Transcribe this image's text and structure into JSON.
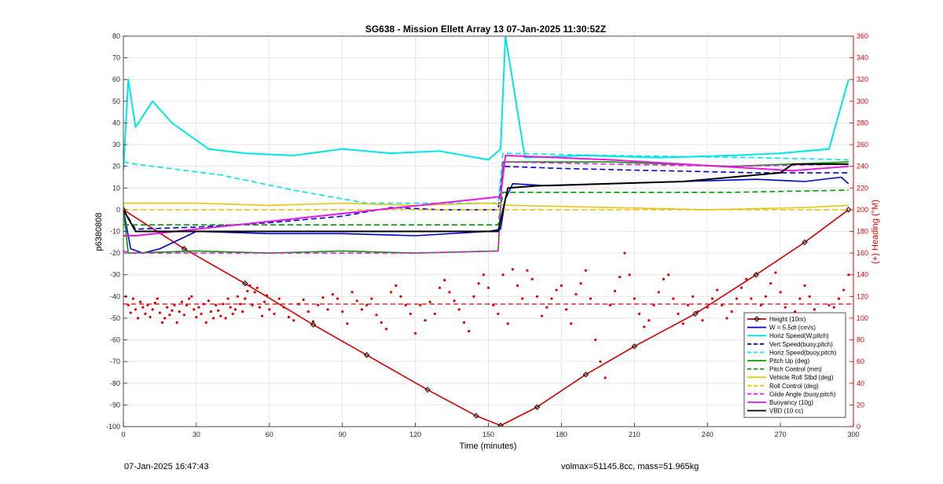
{
  "chart_data": {
    "type": "line",
    "title": "SG638 - Mission Ellett Array 13 07-Jan-2025 11:30:52Z",
    "xlabel": "Time (minutes)",
    "ylabel": "p6380808",
    "y2label": "(+) Heading (°M)",
    "xlim": [
      0,
      300
    ],
    "ylim": [
      -100,
      80
    ],
    "y2lim": [
      0,
      360
    ],
    "xticks": [
      "0",
      "30",
      "60",
      "90",
      "120",
      "150",
      "180",
      "210",
      "240",
      "270",
      "300"
    ],
    "yticks": [
      "-100",
      "-90",
      "-80",
      "-70",
      "-60",
      "-50",
      "-40",
      "-30",
      "-20",
      "-10",
      "0",
      "10",
      "20",
      "30",
      "40",
      "50",
      "60",
      "70",
      "80"
    ],
    "y2ticks": [
      "0",
      "20",
      "40",
      "60",
      "80",
      "100",
      "120",
      "140",
      "160",
      "180",
      "200",
      "220",
      "240",
      "260",
      "280",
      "300",
      "320",
      "340",
      "360"
    ],
    "grid": true,
    "legend_position": "bottom-right",
    "series": [
      {
        "name": "Height (10m)",
        "color": "#cc0000",
        "style": "solid-markers",
        "x": [
          0,
          25,
          50,
          78,
          100,
          125,
          145,
          155,
          170,
          190,
          210,
          235,
          260,
          280,
          298
        ],
        "y": [
          0,
          -18,
          -34,
          -53,
          -67,
          -83,
          -95,
          -99.5,
          -91,
          -76,
          -63,
          -48,
          -30,
          -15,
          0
        ]
      },
      {
        "name": "W = 5.5dt (cm/s)",
        "color": "#0000cc",
        "style": "solid",
        "x": [
          0,
          3,
          8,
          15,
          30,
          60,
          90,
          120,
          150,
          155,
          157,
          160,
          175,
          200,
          230,
          260,
          280,
          295,
          298
        ],
        "y": [
          0,
          -18,
          -20,
          -18,
          -10,
          -11,
          -11,
          -12,
          -10,
          -9,
          5,
          12,
          11,
          12,
          13,
          14,
          13,
          15,
          12
        ]
      },
      {
        "name": "Horiz Speed(W,pitch)",
        "color": "#00e5e5",
        "style": "solid",
        "x": [
          0,
          2,
          5,
          12,
          20,
          35,
          50,
          70,
          90,
          110,
          130,
          150,
          155,
          157,
          165,
          190,
          220,
          250,
          270,
          290,
          298
        ],
        "y": [
          18,
          60,
          38,
          50,
          40,
          28,
          26,
          25,
          28,
          26,
          27,
          23,
          28,
          80,
          24,
          25,
          24,
          25,
          26,
          28,
          60
        ]
      },
      {
        "name": "Vert Speed(buoy,pitch)",
        "color": "#0000cc",
        "style": "dashed",
        "x": [
          0,
          5,
          30,
          60,
          90,
          110,
          130,
          154,
          156,
          180,
          220,
          260,
          290,
          298
        ],
        "y": [
          0,
          -9,
          -8,
          -6,
          -3,
          1,
          0,
          0,
          20,
          19,
          18,
          17,
          17,
          17
        ]
      },
      {
        "name": "Horiz Speed(buoy,pitch)",
        "color": "#00e5e5",
        "style": "dashed",
        "x": [
          0,
          5,
          40,
          70,
          100,
          154,
          156,
          200,
          260,
          298
        ],
        "y": [
          22,
          21,
          16,
          9,
          3,
          3,
          26,
          25,
          24,
          23
        ]
      },
      {
        "name": "Pitch Up (deg)",
        "color": "#009900",
        "style": "solid",
        "x": [
          0,
          2,
          4,
          30,
          60,
          90,
          120,
          154,
          156,
          200,
          250,
          298
        ],
        "y": [
          0,
          -20,
          -20,
          -19,
          -20,
          -19,
          -20,
          -19,
          22,
          22,
          20,
          22
        ]
      },
      {
        "name": "Pitch Control (mm)",
        "color": "#009900",
        "style": "dashed",
        "x": [
          0,
          3,
          60,
          120,
          154,
          156,
          200,
          250,
          298
        ],
        "y": [
          -7,
          -7,
          -7,
          -7,
          -7,
          8,
          8,
          8,
          9
        ]
      },
      {
        "name": "Vehicle Roll Stbd (deg)",
        "color": "#e6c619",
        "style": "solid",
        "x": [
          0,
          30,
          60,
          90,
          120,
          150,
          160,
          200,
          240,
          280,
          298
        ],
        "y": [
          3,
          3,
          2,
          3,
          2,
          3,
          2,
          1,
          0,
          1,
          2
        ]
      },
      {
        "name": "Roll Control (deg)",
        "color": "#e6c619",
        "style": "dashed",
        "x": [
          0,
          50,
          100,
          150,
          200,
          250,
          298
        ],
        "y": [
          0,
          0,
          0,
          0,
          0,
          0,
          0
        ]
      },
      {
        "name": "Glide Angle (buoy,pitch)",
        "color": "#e619e6",
        "style": "dashed",
        "x": [
          0,
          3,
          30,
          60,
          90,
          120,
          154,
          156,
          200,
          250,
          298
        ],
        "y": [
          -19,
          -20,
          -20,
          -20,
          -20,
          -20,
          -19,
          22,
          21,
          20,
          21
        ]
      },
      {
        "name": "Buoyancy (10g)",
        "color": "#e619e6",
        "style": "solid",
        "x": [
          0,
          5,
          155,
          157,
          200,
          275,
          298
        ],
        "y": [
          -12,
          -12,
          6,
          25,
          23,
          18,
          20
        ]
      },
      {
        "name": "VBD (10 cc)",
        "color": "#000000",
        "style": "solid",
        "x": [
          0,
          5,
          60,
          120,
          154,
          158,
          170,
          200,
          230,
          250,
          270,
          275,
          298
        ],
        "y": [
          0,
          -10,
          -10,
          -10,
          -10,
          10,
          11,
          12,
          13,
          15,
          17,
          21,
          21
        ]
      }
    ],
    "heading": {
      "color": "#dd0000",
      "mean_heading": 113,
      "points": [
        [
          1,
          120
        ],
        [
          2,
          112
        ],
        [
          3,
          105
        ],
        [
          4,
          118
        ],
        [
          5,
          108
        ],
        [
          6,
          100
        ],
        [
          7,
          115
        ],
        [
          8,
          110
        ],
        [
          9,
          104
        ],
        [
          10,
          112
        ],
        [
          11,
          101
        ],
        [
          12,
          108
        ],
        [
          13,
          114
        ],
        [
          14,
          118
        ],
        [
          15,
          105
        ],
        [
          16,
          96
        ],
        [
          17,
          100
        ],
        [
          18,
          110
        ],
        [
          19,
          103
        ],
        [
          20,
          107
        ],
        [
          21,
          112
        ],
        [
          22,
          96
        ],
        [
          23,
          106
        ],
        [
          24,
          115
        ],
        [
          25,
          103
        ],
        [
          26,
          112
        ],
        [
          27,
          118
        ],
        [
          28,
          120
        ],
        [
          29,
          108
        ],
        [
          30,
          101
        ],
        [
          31,
          110
        ],
        [
          32,
          104
        ],
        [
          33,
          113
        ],
        [
          34,
          96
        ],
        [
          35,
          116
        ],
        [
          36,
          106
        ],
        [
          37,
          100
        ],
        [
          38,
          112
        ],
        [
          39,
          107
        ],
        [
          40,
          102
        ],
        [
          41,
          113
        ],
        [
          42,
          100
        ],
        [
          43,
          118
        ],
        [
          44,
          110
        ],
        [
          45,
          104
        ],
        [
          46,
          108
        ],
        [
          47,
          120
        ],
        [
          48,
          113
        ],
        [
          49,
          106
        ],
        [
          50,
          118
        ],
        [
          51,
          125
        ],
        [
          52,
          130
        ],
        [
          53,
          112
        ],
        [
          54,
          124
        ],
        [
          55,
          128
        ],
        [
          56,
          110
        ],
        [
          57,
          102
        ],
        [
          58,
          115
        ],
        [
          59,
          121
        ],
        [
          60,
          108
        ],
        [
          62,
          104
        ],
        [
          64,
          118
        ],
        [
          66,
          110
        ],
        [
          68,
          101
        ],
        [
          70,
          98
        ],
        [
          72,
          113
        ],
        [
          74,
          117
        ],
        [
          76,
          106
        ],
        [
          78,
          97
        ],
        [
          80,
          112
        ],
        [
          82,
          119
        ],
        [
          84,
          108
        ],
        [
          86,
          122
        ],
        [
          88,
          118
        ],
        [
          90,
          106
        ],
        [
          92,
          95
        ],
        [
          94,
          124
        ],
        [
          96,
          116
        ],
        [
          98,
          108
        ],
        [
          100,
          112
        ],
        [
          102,
          118
        ],
        [
          104,
          103
        ],
        [
          106,
          96
        ],
        [
          108,
          90
        ],
        [
          110,
          124
        ],
        [
          112,
          130
        ],
        [
          114,
          120
        ],
        [
          116,
          112
        ],
        [
          118,
          104
        ],
        [
          120,
          86
        ],
        [
          122,
          112
        ],
        [
          124,
          98
        ],
        [
          126,
          115
        ],
        [
          128,
          104
        ],
        [
          130,
          128
        ],
        [
          132,
          135
        ],
        [
          134,
          124
        ],
        [
          136,
          116
        ],
        [
          138,
          108
        ],
        [
          140,
          96
        ],
        [
          142,
          88
        ],
        [
          144,
          120
        ],
        [
          146,
          132
        ],
        [
          148,
          140
        ],
        [
          150,
          128
        ],
        [
          152,
          112
        ],
        [
          154,
          104
        ],
        [
          156,
          140
        ],
        [
          158,
          95
        ],
        [
          160,
          145
        ],
        [
          162,
          130
        ],
        [
          164,
          118
        ],
        [
          166,
          144
        ],
        [
          168,
          136
        ],
        [
          170,
          120
        ],
        [
          172,
          102
        ],
        [
          174,
          110
        ],
        [
          176,
          118
        ],
        [
          178,
          126
        ],
        [
          180,
          130
        ],
        [
          182,
          108
        ],
        [
          184,
          95
        ],
        [
          186,
          122
        ],
        [
          188,
          132
        ],
        [
          190,
          144
        ],
        [
          192,
          118
        ],
        [
          194,
          80
        ],
        [
          196,
          60
        ],
        [
          198,
          45
        ],
        [
          200,
          112
        ],
        [
          202,
          125
        ],
        [
          204,
          138
        ],
        [
          206,
          160
        ],
        [
          208,
          140
        ],
        [
          210,
          118
        ],
        [
          212,
          104
        ],
        [
          214,
          92
        ],
        [
          216,
          98
        ],
        [
          218,
          112
        ],
        [
          220,
          124
        ],
        [
          222,
          136
        ],
        [
          224,
          140
        ],
        [
          226,
          118
        ],
        [
          228,
          104
        ],
        [
          230,
          95
        ],
        [
          232,
          112
        ],
        [
          234,
          120
        ],
        [
          236,
          106
        ],
        [
          238,
          98
        ],
        [
          240,
          110
        ],
        [
          242,
          118
        ],
        [
          244,
          126
        ],
        [
          246,
          112
        ],
        [
          248,
          100
        ],
        [
          250,
          106
        ],
        [
          252,
          118
        ],
        [
          254,
          128
        ],
        [
          256,
          136
        ],
        [
          258,
          118
        ],
        [
          260,
          104
        ],
        [
          262,
          112
        ],
        [
          264,
          120
        ],
        [
          266,
          132
        ],
        [
          268,
          142
        ],
        [
          270,
          124
        ],
        [
          272,
          110
        ],
        [
          274,
          98
        ],
        [
          276,
          106
        ],
        [
          278,
          118
        ],
        [
          280,
          130
        ],
        [
          282,
          120
        ],
        [
          284,
          108
        ],
        [
          286,
          98
        ],
        [
          288,
          104
        ],
        [
          290,
          112
        ],
        [
          292,
          110
        ],
        [
          294,
          118
        ],
        [
          296,
          126
        ],
        [
          298,
          140
        ]
      ]
    }
  },
  "footer": {
    "timestamp": "07-Jan-2025 16:47:43",
    "volmax_mass": "volmax=51145.8cc, mass=51.965kg"
  }
}
